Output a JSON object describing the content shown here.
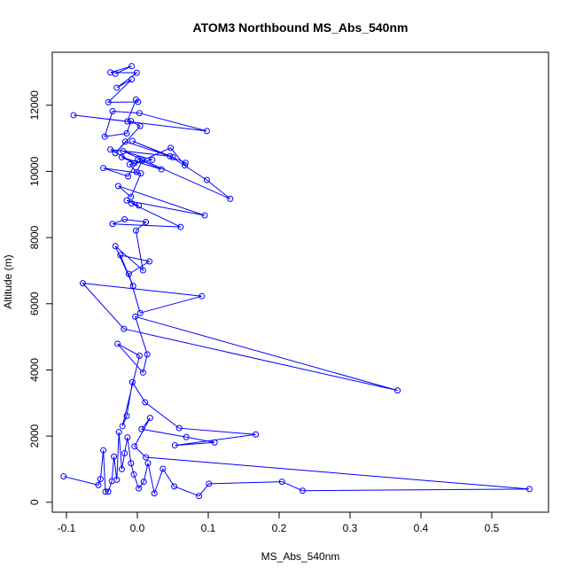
{
  "chart_data": {
    "type": "scatter",
    "mode": "lines+markers",
    "title": "ATOM3 Northbound MS_Abs_540nm",
    "xlabel": "MS_Abs_540nm",
    "ylabel": "Altitude (m)",
    "xlim": [
      -0.12,
      0.58
    ],
    "ylim": [
      -300,
      13600
    ],
    "xticks": [
      -0.1,
      0.0,
      0.1,
      0.2,
      0.3,
      0.4,
      0.5
    ],
    "xtick_labels": [
      "-0.1",
      "0.0",
      "0.1",
      "0.2",
      "0.3",
      "0.4",
      "0.5"
    ],
    "yticks": [
      0,
      2000,
      4000,
      6000,
      8000,
      10000,
      12000
    ],
    "ytick_labels": [
      "0",
      "2000",
      "4000",
      "6000",
      "8000",
      "10000",
      "12000"
    ],
    "grid": false,
    "legend": "none",
    "color": "#0000ff",
    "marker": "open-circle",
    "x": [
      -0.104,
      -0.055,
      -0.052,
      -0.048,
      -0.045,
      -0.041,
      -0.036,
      -0.033,
      -0.029,
      -0.026,
      -0.022,
      -0.018,
      -0.014,
      -0.009,
      -0.005,
      0.002,
      0.009,
      0.015,
      0.024,
      0.036,
      0.052,
      0.087,
      0.101,
      0.204,
      0.233,
      0.553,
      0.012,
      -0.004,
      0.018,
      0.006,
      0.069,
      0.109,
      0.053,
      0.167,
      0.059,
      0.011,
      -0.007,
      -0.015,
      -0.021,
      0.003,
      -0.028,
      0.008,
      0.014,
      -0.003,
      0.367,
      -0.019,
      -0.077,
      0.091,
      0.004,
      -0.012,
      0.017,
      -0.024,
      -0.006,
      -0.031,
      0.008,
      -0.002,
      0.012,
      -0.018,
      -0.035,
      0.061,
      -0.008,
      0.002,
      -0.015,
      0.095,
      -0.027,
      -0.009,
      0.005,
      -0.048,
      -0.013,
      0.001,
      0.034,
      -0.022,
      -0.004,
      -0.038,
      0.046,
      0.098,
      0.131,
      -0.02,
      0.021,
      -0.011,
      -0.001,
      0.007,
      0.047,
      0.067,
      0.068,
      -0.007,
      0.05,
      -0.017,
      -0.031,
      0.004,
      -0.009,
      -0.015,
      -0.046,
      -0.035,
      0.003,
      0.098,
      -0.09,
      -0.014,
      -0.002,
      0.001,
      -0.041,
      -0.008,
      -0.029,
      -0.001,
      -0.038,
      -0.008,
      -0.031
    ],
    "y": [
      780,
      520,
      700,
      1570,
      320,
      320,
      640,
      1380,
      680,
      2120,
      1000,
      1480,
      1960,
      1180,
      840,
      420,
      620,
      1180,
      270,
      1010,
      480,
      190,
      560,
      620,
      350,
      400,
      1360,
      1690,
      2550,
      2210,
      1970,
      1810,
      1720,
      2050,
      2240,
      3020,
      3630,
      2610,
      2300,
      4430,
      4790,
      3920,
      4470,
      5610,
      3380,
      5240,
      6620,
      6230,
      5720,
      6900,
      7280,
      7470,
      6540,
      7740,
      7010,
      8210,
      8470,
      8550,
      8410,
      8320,
      9030,
      8970,
      9120,
      8670,
      9560,
      9230,
      9940,
      10100,
      9850,
      10370,
      10060,
      10430,
      10250,
      10660,
      10460,
      9740,
      9170,
      10610,
      10350,
      10210,
      9980,
      10330,
      10710,
      10180,
      10260,
      10920,
      10430,
      10900,
      10550,
      11370,
      11520,
      11150,
      11050,
      11820,
      11760,
      11220,
      11700,
      11510,
      12170,
      12100,
      12090,
      12780,
      12530,
      12980,
      12990,
      13180,
      12950
    ]
  }
}
